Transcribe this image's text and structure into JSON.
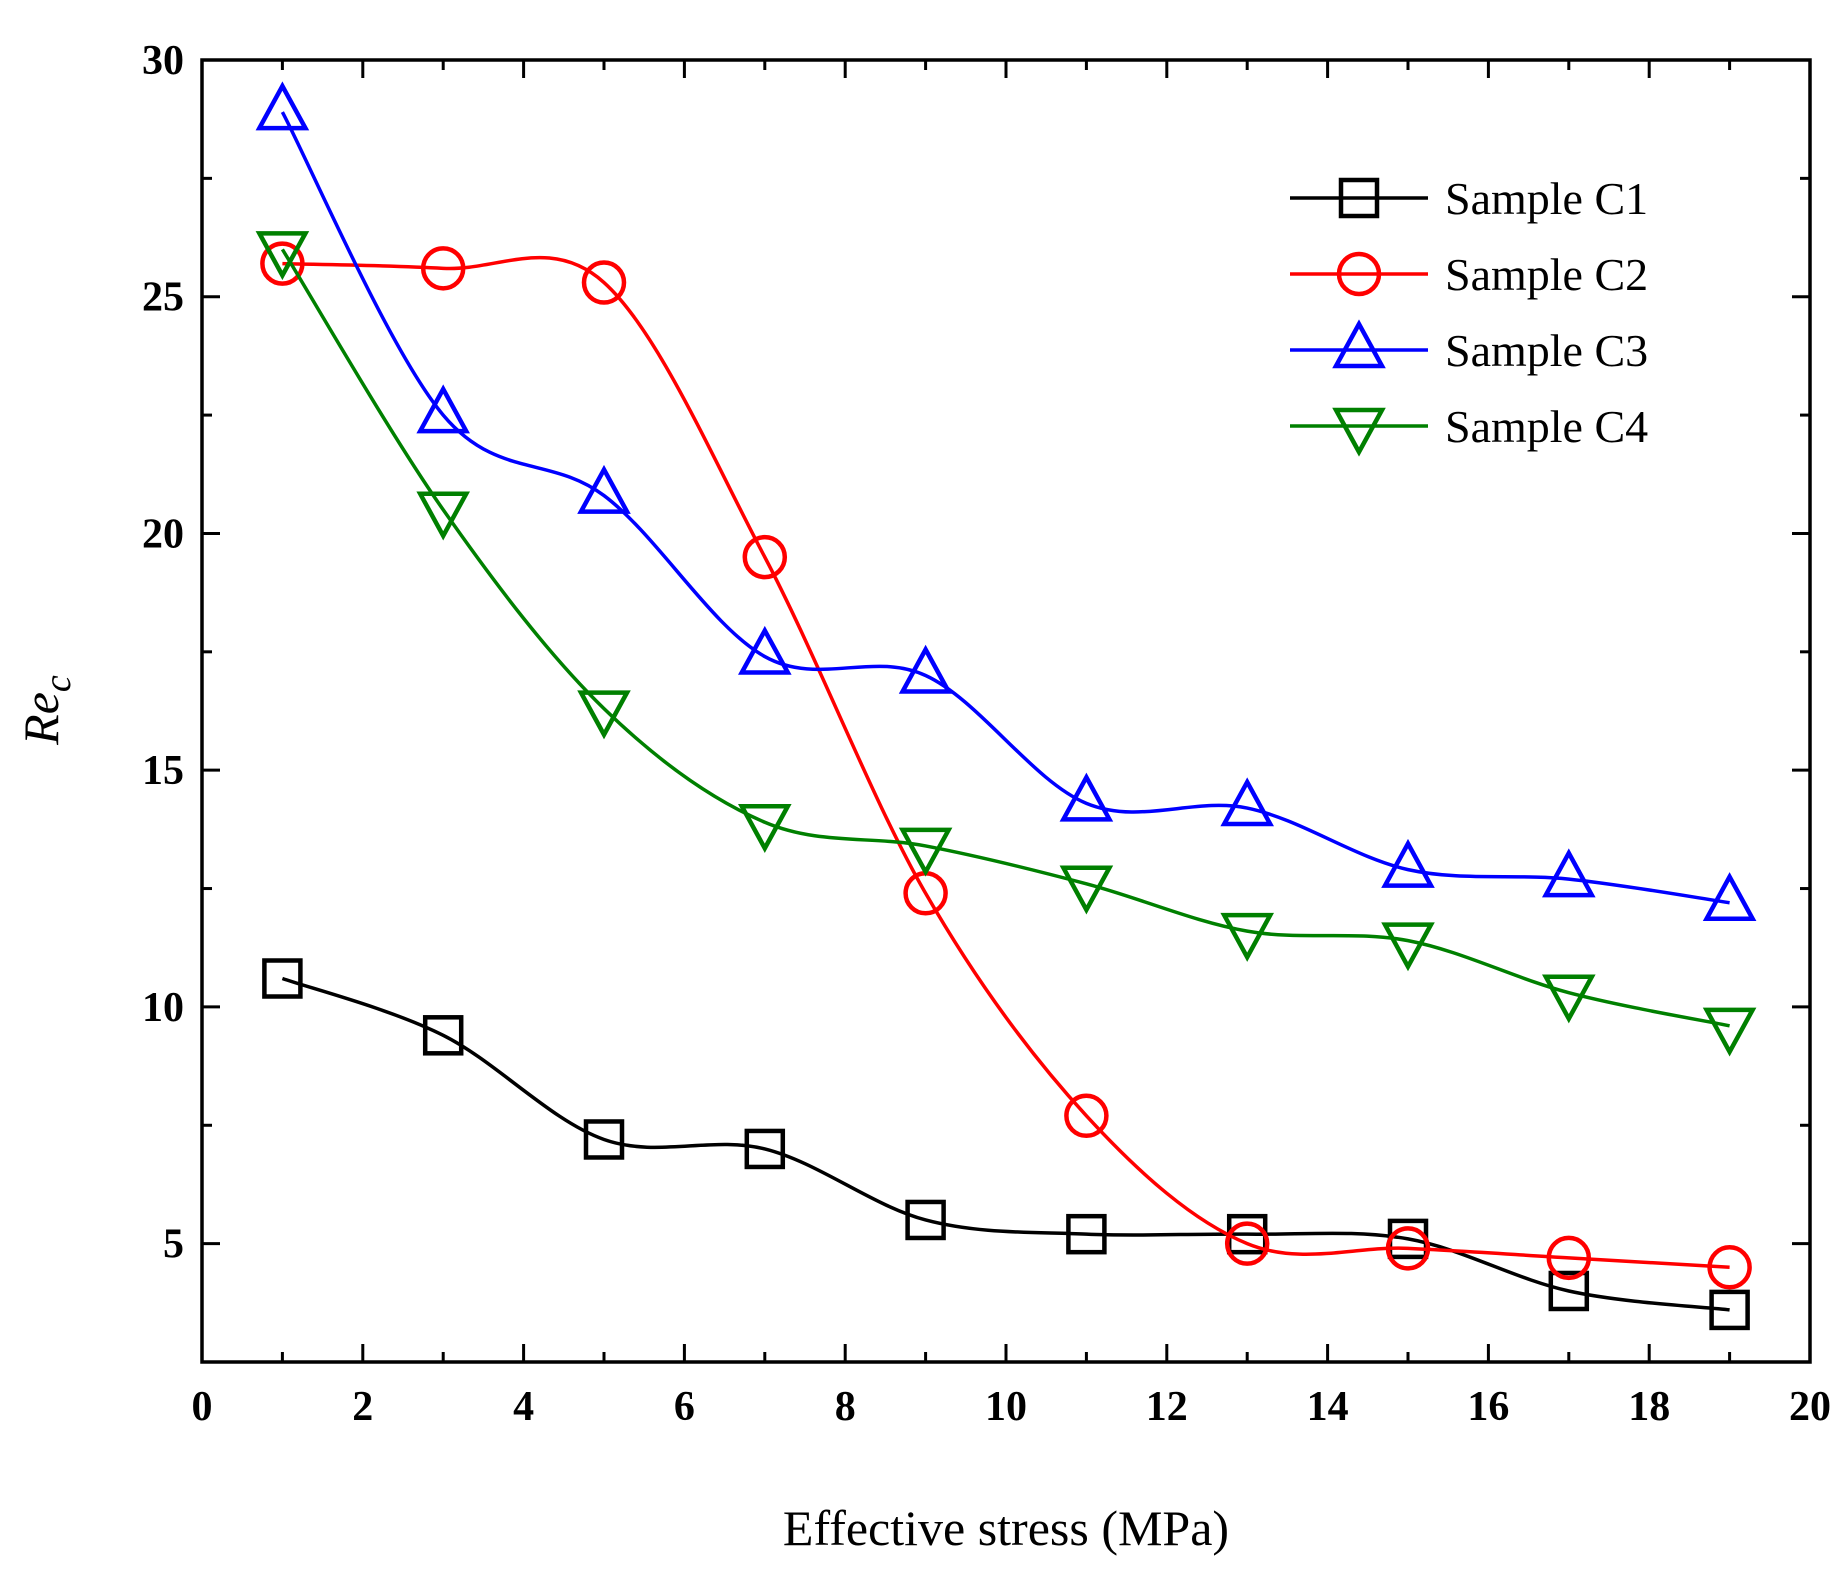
{
  "chart_data": {
    "type": "line",
    "title": "",
    "xlabel": "Effective stress (MPa)",
    "ylabel_main": "Re",
    "ylabel_sub": "c",
    "xlim": [
      0,
      20
    ],
    "ylim": [
      2.5,
      30
    ],
    "xticks": [
      0,
      2,
      4,
      6,
      8,
      10,
      12,
      14,
      16,
      18,
      20
    ],
    "yticks": [
      5,
      10,
      15,
      20,
      25,
      30
    ],
    "grid": false,
    "legend_position": "top-right",
    "x": [
      1,
      3,
      5,
      7,
      9,
      11,
      13,
      15,
      17,
      19
    ],
    "series": [
      {
        "name": "Sample C1",
        "color": "#000000",
        "marker": "square",
        "values": [
          10.6,
          9.4,
          7.2,
          7.0,
          5.5,
          5.2,
          5.2,
          5.1,
          4.0,
          3.6
        ]
      },
      {
        "name": "Sample C2",
        "color": "#ff0000",
        "marker": "circle",
        "values": [
          25.7,
          25.6,
          25.3,
          19.5,
          12.4,
          7.7,
          5.0,
          4.9,
          4.7,
          4.5
        ]
      },
      {
        "name": "Sample C3",
        "color": "#0000ff",
        "marker": "triangle-up",
        "values": [
          28.9,
          22.5,
          20.8,
          17.4,
          17.0,
          14.3,
          14.2,
          12.9,
          12.7,
          12.2
        ]
      },
      {
        "name": "Sample C4",
        "color": "#008000",
        "marker": "triangle-down",
        "values": [
          26.0,
          20.5,
          16.3,
          13.9,
          13.4,
          12.6,
          11.6,
          11.4,
          10.3,
          9.6
        ]
      }
    ]
  }
}
